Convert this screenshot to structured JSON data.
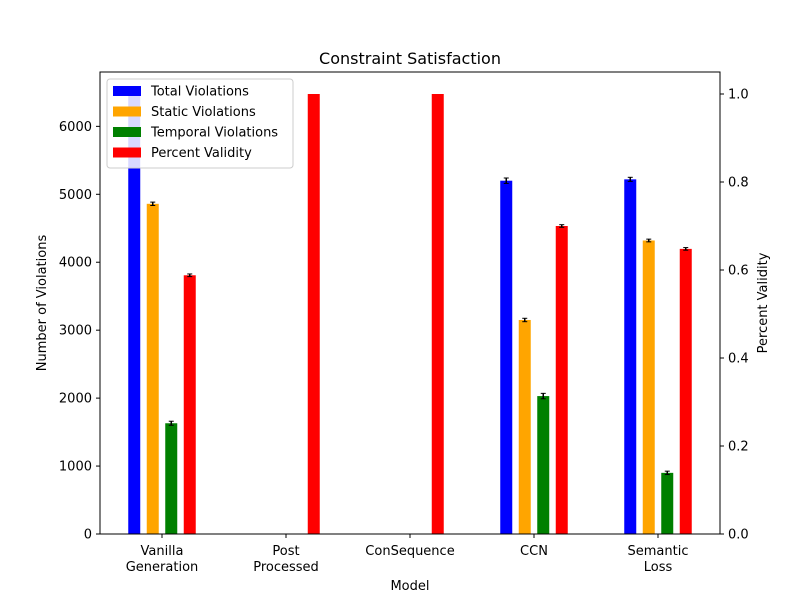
{
  "chart_data": {
    "type": "bar",
    "title": "Constraint Satisfaction",
    "xlabel": "Model",
    "ylabel": "Number of Violations",
    "y2label": "Percent Validity",
    "categories": [
      "Vanilla\nGeneration",
      "Post\nProcessed",
      "ConSequence",
      "CCN",
      "Semantic\nLoss"
    ],
    "ylim": [
      0,
      6800
    ],
    "y2lim": [
      0,
      1.05
    ],
    "yticks": [
      0,
      1000,
      2000,
      3000,
      4000,
      5000,
      6000
    ],
    "y2ticks": [
      0.0,
      0.2,
      0.4,
      0.6,
      0.8,
      1.0
    ],
    "grid": false,
    "legend_position": "top-left",
    "series": [
      {
        "name": "Total Violations",
        "axis": "left",
        "color": "#0000ff",
        "values": [
          6500,
          0,
          0,
          5200,
          5220
        ],
        "errors": [
          40,
          0,
          0,
          40,
          30
        ]
      },
      {
        "name": "Static Violations",
        "axis": "left",
        "color": "#ffa500",
        "values": [
          4860,
          0,
          0,
          3150,
          4320
        ],
        "errors": [
          25,
          0,
          0,
          25,
          20
        ]
      },
      {
        "name": "Temporal Violations",
        "axis": "left",
        "color": "#008000",
        "values": [
          1630,
          0,
          0,
          2030,
          900
        ],
        "errors": [
          30,
          0,
          0,
          40,
          25
        ]
      },
      {
        "name": "Percent Validity",
        "axis": "right",
        "color": "#ff0000",
        "values": [
          0.588,
          1.0,
          1.0,
          0.7,
          0.648
        ],
        "errors": [
          0.003,
          0,
          0,
          0.003,
          0.003
        ]
      }
    ]
  }
}
